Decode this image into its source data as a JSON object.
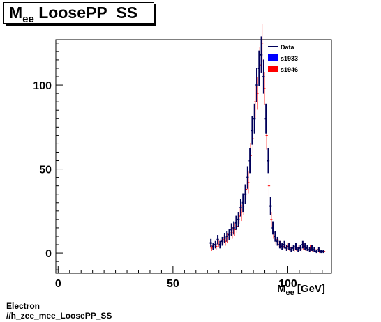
{
  "header": {
    "title_main": "M",
    "title_sub": "ee",
    "title_rest": " LoosePP_SS"
  },
  "footer": {
    "line1": "Electron",
    "line2": "//h_zee_mee_LoosePP_SS"
  },
  "axis": {
    "xlabel_main": "M",
    "xlabel_sub": "ee",
    "xlabel_rest": " [GeV]"
  },
  "chart_data": {
    "type": "scatter",
    "title": "Mee LoosePP_SS",
    "xlabel": "Mee [GeV]",
    "ylabel": "",
    "xlim": [
      -1,
      119
    ],
    "ylim": [
      -12,
      127
    ],
    "x_ticks": [
      0,
      50,
      100
    ],
    "y_ticks": [
      0,
      50,
      100
    ],
    "grid": false,
    "legend_position": "top-right",
    "colors": {
      "Data": "#00005a",
      "s1933": "#0000ff",
      "s1946": "#ff0000"
    },
    "legend": [
      {
        "label": "Data",
        "style": "line",
        "color": "#00005a"
      },
      {
        "label": "s1933",
        "style": "box",
        "color": "#0000ff"
      },
      {
        "label": "s1946",
        "style": "box",
        "color": "#ff0000"
      }
    ],
    "series": [
      {
        "name": "Data",
        "x": [
          66.5,
          67.5,
          68.5,
          69.5,
          70.5,
          71.5,
          72.5,
          73.5,
          74.5,
          75.5,
          76.5,
          77.5,
          78.5,
          79.5,
          80.5,
          81.5,
          82.5,
          83.5,
          84.5,
          85.5,
          86.5,
          87.5,
          88.5,
          89.5,
          90.5,
          91.5,
          92.5,
          93.5,
          94.5,
          95.5,
          96.5,
          97.5,
          98.5,
          99.5,
          100.5,
          101.5,
          102.5,
          103.5,
          104.5,
          105.5,
          106.5,
          107.5,
          108.5,
          109.5,
          110.5,
          111.5,
          112.5,
          113.5,
          114.5,
          115.5
        ],
        "y": [
          6,
          4,
          5,
          8,
          5,
          7,
          9,
          10,
          11,
          14,
          15,
          18,
          20,
          27,
          30,
          35,
          45,
          55,
          73,
          80,
          100,
          110,
          118,
          105,
          80,
          55,
          28,
          15,
          10,
          7,
          5,
          4,
          5,
          3,
          4,
          2,
          3,
          4,
          2,
          3,
          5,
          4,
          3,
          2,
          3,
          2,
          1,
          2,
          1,
          1
        ],
        "yerr": [
          2.4,
          2,
          2.2,
          2.8,
          2.2,
          2.6,
          3,
          3.2,
          3.3,
          3.7,
          3.9,
          4.2,
          4.5,
          5.2,
          5.5,
          5.9,
          6.7,
          7.4,
          8.5,
          8.9,
          10,
          10.5,
          10.9,
          10.2,
          8.9,
          7.4,
          5.3,
          3.9,
          3.2,
          2.6,
          2.2,
          2,
          2.2,
          1.7,
          2,
          1.4,
          1.7,
          2,
          1.4,
          1.7,
          2.2,
          2,
          1.7,
          1.4,
          1.7,
          1.4,
          1,
          1.4,
          1,
          1
        ]
      },
      {
        "name": "s1946",
        "x": [
          66.5,
          67.5,
          68.5,
          69.5,
          70.5,
          71.5,
          72.5,
          73.5,
          74.5,
          75.5,
          76.5,
          77.5,
          78.5,
          79.5,
          80.5,
          81.5,
          82.5,
          83.5,
          84.5,
          85.5,
          86.5,
          87.5,
          88.5,
          89.5,
          90.5,
          91.5,
          92.5,
          93.5,
          94.5,
          95.5,
          96.5,
          97.5,
          98.5,
          99.5,
          100.5,
          101.5,
          102.5,
          103.5,
          104.5,
          105.5,
          106.5,
          107.5,
          108.5,
          109.5,
          110.5,
          111.5,
          112.5,
          113.5,
          114.5,
          115.5
        ],
        "y": [
          3,
          5,
          4,
          6,
          6,
          8,
          7,
          9,
          12,
          12,
          14,
          16,
          22,
          24,
          28,
          38,
          42,
          58,
          68,
          90,
          95,
          112,
          125,
          98,
          70,
          40,
          20,
          12,
          8,
          6,
          5,
          4,
          3,
          4,
          3,
          3,
          2,
          3,
          3,
          2,
          4,
          3,
          2,
          3,
          2,
          2,
          2,
          1,
          1,
          1
        ],
        "yerr": [
          1.7,
          2.2,
          2,
          2.4,
          2.4,
          2.8,
          2.6,
          3,
          3.5,
          3.5,
          3.7,
          4,
          4.7,
          4.9,
          5.3,
          6.2,
          6.5,
          7.6,
          8.2,
          9.5,
          9.7,
          10.6,
          11.2,
          9.9,
          8.4,
          6.3,
          4.5,
          3.5,
          2.8,
          2.4,
          2.2,
          2,
          1.7,
          2,
          1.7,
          1.7,
          1.4,
          1.7,
          1.7,
          1.4,
          2,
          1.7,
          1.4,
          1.7,
          1.4,
          1.4,
          1.4,
          1,
          1,
          1
        ]
      }
    ]
  }
}
